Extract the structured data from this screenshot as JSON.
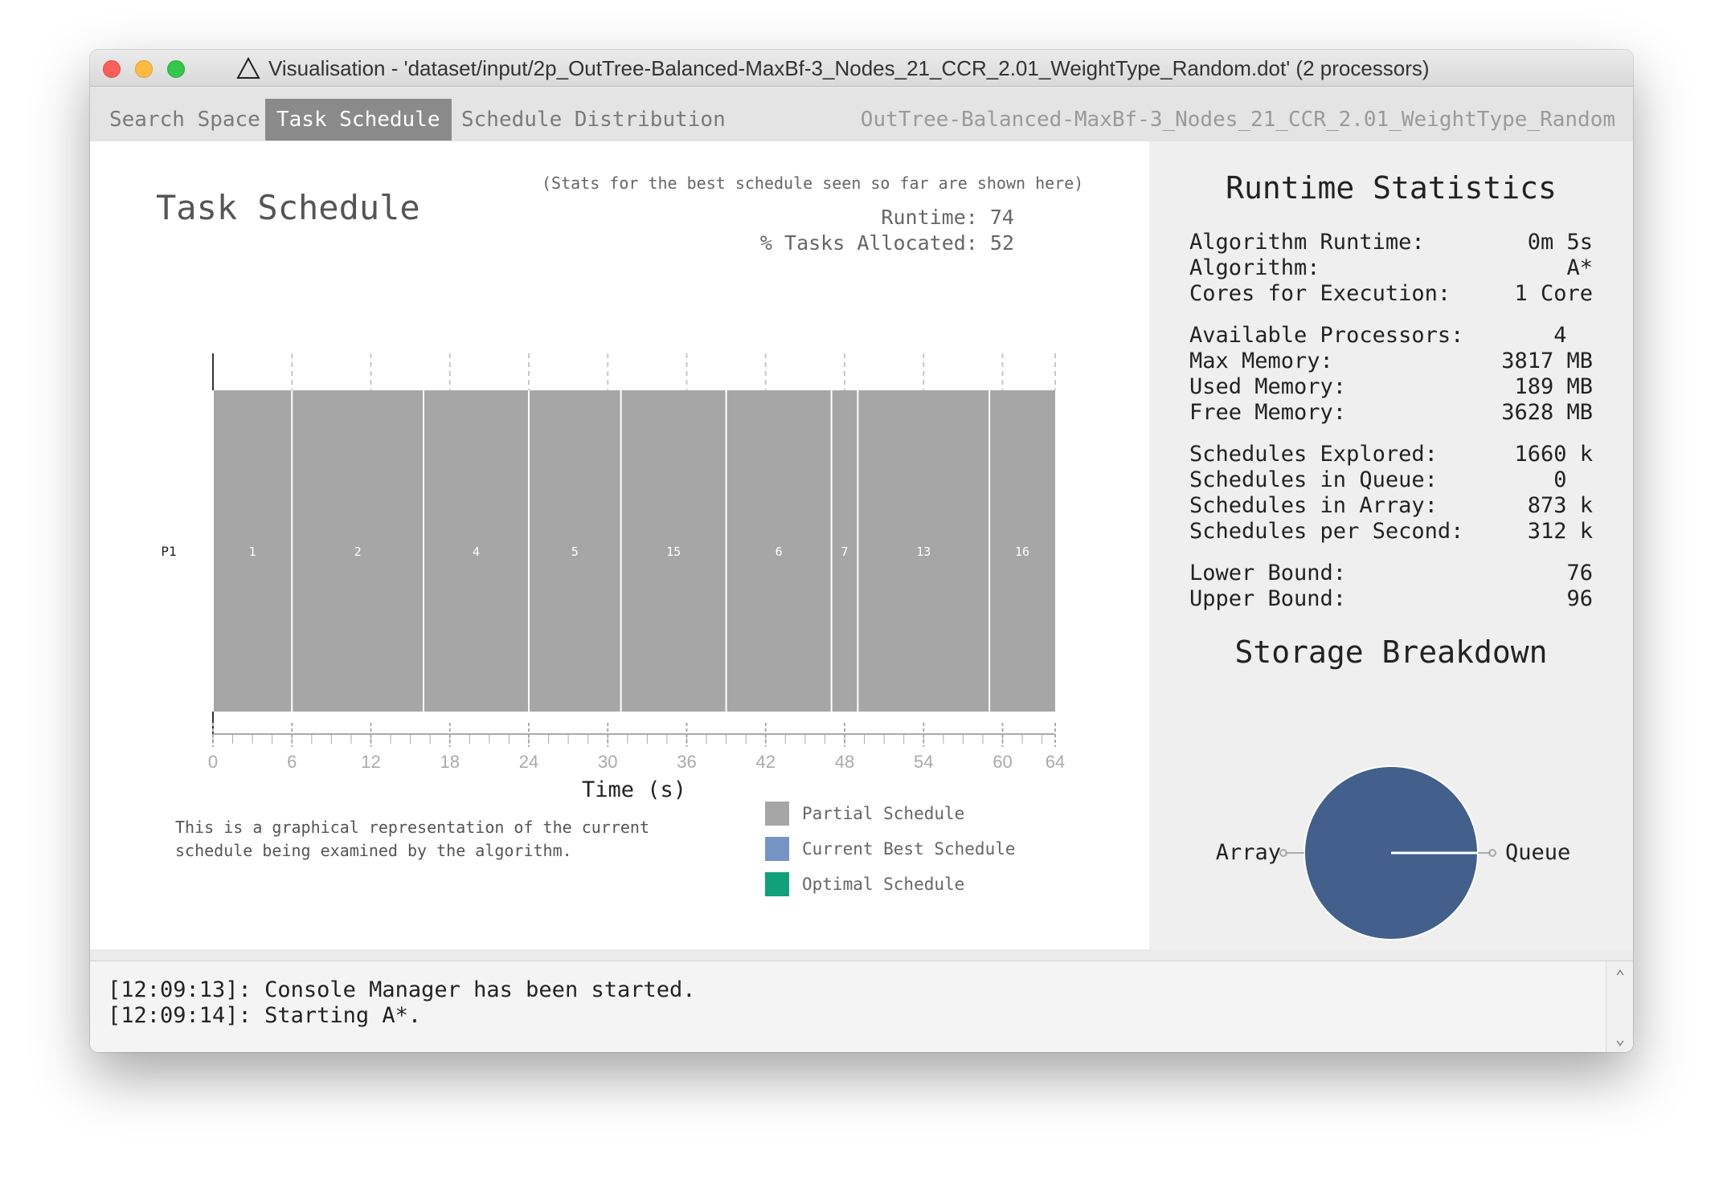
{
  "window": {
    "title_icon": "warning-triangle-icon",
    "title": "Visualisation - 'dataset/input/2p_OutTree-Balanced-MaxBf-3_Nodes_21_CCR_2.01_WeightType_Random.dot' (2 processors)"
  },
  "tabs": [
    {
      "label": "Search Space",
      "active": false
    },
    {
      "label": "Task Schedule",
      "active": true
    },
    {
      "label": "Schedule Distribution",
      "active": false
    }
  ],
  "filename": "OutTree-Balanced-MaxBf-3_Nodes_21_CCR_2.01_WeightType_Random",
  "task_schedule": {
    "title": "Task Schedule",
    "note": "(Stats for the best schedule seen so far are shown here)",
    "runtime": "Runtime: 74",
    "tasks_allocated": "% Tasks Allocated: 52",
    "description": "This is a graphical representation of the current schedule being examined by the algorithm.",
    "legend": [
      {
        "label": "Partial Schedule",
        "color": "#a6a6a6"
      },
      {
        "label": "Current Best Schedule",
        "color": "#7594c4"
      },
      {
        "label": "Optimal Schedule",
        "color": "#12a07b"
      }
    ]
  },
  "chart_data": {
    "type": "bar",
    "subtype": "gantt",
    "xlabel": "Time (s)",
    "xlim": [
      0,
      64
    ],
    "x_ticks": [
      0,
      6,
      12,
      18,
      24,
      30,
      36,
      42,
      48,
      54,
      60,
      64
    ],
    "processors": [
      "P1"
    ],
    "bar_color": "#a6a6a6",
    "tasks": [
      {
        "processor": "P1",
        "label": "1",
        "start": 0,
        "end": 6
      },
      {
        "processor": "P1",
        "label": "2",
        "start": 6,
        "end": 16
      },
      {
        "processor": "P1",
        "label": "4",
        "start": 16,
        "end": 24
      },
      {
        "processor": "P1",
        "label": "5",
        "start": 24,
        "end": 31
      },
      {
        "processor": "P1",
        "label": "15",
        "start": 31,
        "end": 39
      },
      {
        "processor": "P1",
        "label": "6",
        "start": 39,
        "end": 47
      },
      {
        "processor": "P1",
        "label": "7",
        "start": 47,
        "end": 49
      },
      {
        "processor": "P1",
        "label": "13",
        "start": 49,
        "end": 59
      },
      {
        "processor": "P1",
        "label": "16",
        "start": 59,
        "end": 64
      }
    ]
  },
  "runtime_statistics": {
    "title": "Runtime Statistics",
    "groups": [
      [
        {
          "label": "Algorithm Runtime:",
          "value": "0m 5s"
        },
        {
          "label": "Algorithm:",
          "value": "A*"
        },
        {
          "label": "Cores for Execution:",
          "value": "1 Core"
        }
      ],
      [
        {
          "label": "Available Processors:",
          "value": "4  "
        },
        {
          "label": "Max Memory:",
          "value": "3817 MB"
        },
        {
          "label": "Used Memory:",
          "value": "189 MB"
        },
        {
          "label": "Free Memory:",
          "value": "3628 MB"
        }
      ],
      [
        {
          "label": "Schedules Explored:",
          "value": "1660 k"
        },
        {
          "label": "Schedules in Queue:",
          "value": "0  "
        },
        {
          "label": "Schedules in Array:",
          "value": "873 k"
        },
        {
          "label": "Schedules per Second:",
          "value": "312 k"
        }
      ],
      [
        {
          "label": "Lower Bound:",
          "value": "76"
        },
        {
          "label": "Upper Bound:",
          "value": "96"
        }
      ]
    ]
  },
  "storage_breakdown": {
    "title": "Storage Breakdown",
    "color": "#43608c",
    "slices": [
      {
        "label": "Array",
        "value": 100
      },
      {
        "label": "Queue",
        "value": 0
      }
    ]
  },
  "console": {
    "lines": [
      "[12:09:13]: Console Manager has been started.",
      "[12:09:14]: Starting A*."
    ]
  }
}
